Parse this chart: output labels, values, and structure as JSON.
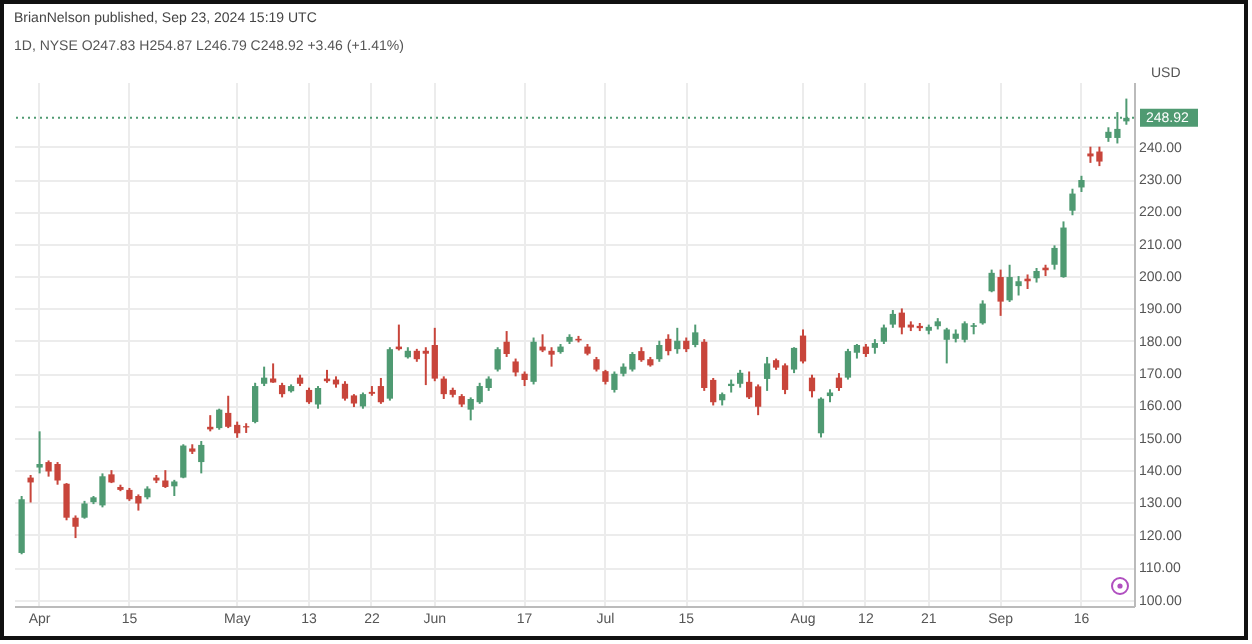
{
  "chart_data": {
    "type": "candlestick",
    "title": "BrianNelson published, Sep 23, 2024 15:19 UTC",
    "subtitle": "1D, NYSE O247.83 H254.87 L246.79 C248.92 +3.46 (+1.41%)",
    "ylabel": "USD",
    "categories": [
      null,
      null,
      "Apr",
      null,
      null,
      null,
      null,
      null,
      null,
      null,
      null,
      null,
      "15",
      null,
      null,
      null,
      null,
      null,
      null,
      null,
      null,
      null,
      null,
      null,
      "May",
      null,
      null,
      null,
      null,
      null,
      null,
      null,
      "13",
      null,
      null,
      null,
      null,
      null,
      null,
      "22",
      null,
      null,
      null,
      null,
      null,
      null,
      "Jun",
      null,
      null,
      null,
      null,
      null,
      null,
      null,
      null,
      null,
      "17",
      null,
      null,
      null,
      null,
      null,
      null,
      null,
      null,
      "Jul",
      null,
      null,
      null,
      null,
      null,
      null,
      null,
      null,
      "15",
      null,
      null,
      null,
      null,
      null,
      null,
      null,
      null,
      null,
      null,
      null,
      null,
      "Aug",
      null,
      null,
      null,
      null,
      null,
      null,
      "12",
      null,
      null,
      null,
      null,
      null,
      null,
      "21",
      null,
      null,
      null,
      null,
      null,
      null,
      null,
      "Sep",
      null,
      null,
      null,
      null,
      null,
      null,
      null,
      null,
      "16",
      null,
      null,
      null,
      null,
      null
    ],
    "ohlc": [
      [
        114.4,
        132,
        114,
        131
      ],
      [
        137.7,
        138.5,
        130,
        136.2
      ],
      [
        140.8,
        152,
        139,
        141.9
      ],
      [
        142.5,
        143,
        138,
        139.6
      ],
      [
        141.9,
        142.5,
        135.5,
        136.8
      ],
      [
        135.8,
        136,
        124.5,
        125.3
      ],
      [
        125.3,
        126,
        119,
        122.5
      ],
      [
        125.3,
        130.5,
        125,
        129.7
      ],
      [
        130.1,
        132,
        129.5,
        131.6
      ],
      [
        129.1,
        139,
        128.5,
        138.1
      ],
      [
        138.7,
        140,
        136,
        136.2
      ],
      [
        134.8,
        135.5,
        133.5,
        133.9
      ],
      [
        133.9,
        134.5,
        130.5,
        131
      ],
      [
        132,
        132.5,
        127.5,
        129.7
      ],
      [
        131.6,
        135,
        131,
        134.3
      ],
      [
        137.7,
        138.5,
        136,
        136.8
      ],
      [
        136.8,
        140,
        134.5,
        134.8
      ],
      [
        135,
        137,
        132,
        136.5
      ],
      [
        137.7,
        148,
        137.5,
        147.6
      ],
      [
        146.7,
        148,
        145,
        145.7
      ],
      [
        142.5,
        149,
        139,
        147.8
      ],
      [
        153.4,
        157,
        152,
        152.6
      ],
      [
        153,
        159,
        152.5,
        158.7
      ],
      [
        157.7,
        163,
        153,
        153.4
      ],
      [
        154,
        155,
        150,
        151.4
      ],
      [
        153.6,
        154.5,
        151.5,
        153.2
      ],
      [
        154.9,
        167,
        154.5,
        166
      ],
      [
        166.7,
        172,
        166,
        168.6
      ],
      [
        168.3,
        173,
        167,
        167.1
      ],
      [
        166.3,
        167,
        162.5,
        163.5
      ],
      [
        164.4,
        166.5,
        164,
        166
      ],
      [
        168.6,
        169.5,
        166,
        166.7
      ],
      [
        164.8,
        165.5,
        160.5,
        161
      ],
      [
        160.3,
        166,
        159,
        165.4
      ],
      [
        168.3,
        171,
        167,
        167.5
      ],
      [
        168,
        169,
        165.5,
        166.5
      ],
      [
        166.7,
        167.5,
        161.5,
        162.1
      ],
      [
        163.1,
        163.5,
        159.5,
        160.6
      ],
      [
        159.7,
        164,
        159,
        163.5
      ],
      [
        164.2,
        166,
        163,
        163.6
      ],
      [
        166,
        168.5,
        160.5,
        161
      ],
      [
        162.1,
        178,
        161.5,
        177.4
      ],
      [
        178.2,
        185,
        177,
        177.4
      ],
      [
        174.9,
        178,
        174.5,
        176.9
      ],
      [
        176.9,
        177.5,
        173.5,
        174.3
      ],
      [
        176.9,
        178,
        166.3,
        176
      ],
      [
        178.7,
        184,
        167.5,
        168.3
      ],
      [
        168.3,
        169,
        162,
        163.5
      ],
      [
        164.8,
        165.5,
        162.5,
        163.3
      ],
      [
        162.9,
        163.5,
        159.5,
        160.3
      ],
      [
        158.7,
        162.5,
        155.4,
        162
      ],
      [
        161,
        167,
        160.5,
        166
      ],
      [
        165.4,
        169,
        164.5,
        168.3
      ],
      [
        171.1,
        178,
        170.5,
        177.4
      ],
      [
        179.7,
        183,
        175,
        175.9
      ],
      [
        173.6,
        174.5,
        169,
        170.2
      ],
      [
        169.8,
        170.5,
        166,
        167.9
      ],
      [
        167.3,
        181,
        166.5,
        179.7
      ],
      [
        178.2,
        182,
        176.5,
        177
      ],
      [
        176.9,
        178,
        172,
        175.7
      ],
      [
        176.5,
        179,
        176,
        178.2
      ],
      [
        179.7,
        182,
        179,
        181.2
      ],
      [
        180.6,
        181.5,
        179.5,
        180.1
      ],
      [
        178.2,
        179,
        175.5,
        176
      ],
      [
        174.3,
        175,
        170.5,
        171.1
      ],
      [
        170.6,
        171,
        166.5,
        167.3
      ],
      [
        164.8,
        170.5,
        164,
        169.8
      ],
      [
        169.8,
        173,
        169,
        172
      ],
      [
        171.1,
        176.5,
        170.5,
        175.9
      ],
      [
        176.8,
        178,
        173.5,
        174
      ],
      [
        174.3,
        175,
        172,
        172.4
      ],
      [
        174.3,
        180,
        173.5,
        178.7
      ],
      [
        180.6,
        182,
        175.5,
        176.8
      ],
      [
        177.4,
        184,
        176,
        180
      ],
      [
        180,
        181,
        176.5,
        177.4
      ],
      [
        178.7,
        185,
        178,
        182.6
      ],
      [
        179.7,
        180.5,
        164.5,
        165.4
      ],
      [
        167.9,
        168.5,
        160,
        161
      ],
      [
        161.6,
        164,
        160,
        163.5
      ],
      [
        166,
        168,
        164,
        166.7
      ],
      [
        166.7,
        171,
        165.5,
        170.1
      ],
      [
        167.3,
        170.5,
        162,
        162.5
      ],
      [
        165.9,
        166.5,
        157,
        159.6
      ],
      [
        168.2,
        175,
        164.5,
        173
      ],
      [
        174,
        174.5,
        171,
        171.7
      ],
      [
        172.4,
        173,
        163.5,
        164.8
      ],
      [
        171.1,
        178,
        170,
        177.8
      ],
      [
        181.6,
        183.5,
        173,
        173.6
      ],
      [
        168.6,
        169.5,
        162.5,
        164.4
      ],
      [
        151.4,
        162.5,
        150.1,
        162.1
      ],
      [
        162.9,
        165,
        161,
        164
      ],
      [
        168.6,
        170,
        164.5,
        165.4
      ],
      [
        168.6,
        177.5,
        168,
        176.8
      ],
      [
        176.3,
        179,
        174.5,
        178.7
      ],
      [
        178.2,
        179,
        175,
        175.9
      ],
      [
        177.8,
        180.5,
        176,
        179.3
      ],
      [
        179.7,
        185,
        179,
        184.1
      ],
      [
        185,
        189.5,
        184,
        188.3
      ],
      [
        188.7,
        190,
        182,
        184.1
      ],
      [
        185,
        186,
        183,
        184.1
      ],
      [
        184.6,
        185.5,
        183,
        183.9
      ],
      [
        183.1,
        185,
        182,
        184.3
      ],
      [
        184.5,
        187,
        183.5,
        186
      ],
      [
        180.3,
        184,
        173,
        183.5
      ],
      [
        180.6,
        183.5,
        179.5,
        182.2
      ],
      [
        180.3,
        186,
        179.5,
        185.4
      ],
      [
        184.3,
        185.5,
        182,
        184.8
      ],
      [
        185.4,
        192.5,
        185,
        191.5
      ],
      [
        195.3,
        202,
        195,
        201
      ],
      [
        199.7,
        202,
        187.7,
        192.1
      ],
      [
        192.5,
        203.5,
        192,
        199.7
      ],
      [
        196.9,
        200,
        194,
        198.4
      ],
      [
        199.2,
        200.5,
        196,
        198.4
      ],
      [
        199.3,
        202.5,
        198,
        201.6
      ],
      [
        202.6,
        203.5,
        200,
        201.8
      ],
      [
        203.5,
        209.5,
        202,
        208.7
      ],
      [
        199.7,
        216.9,
        199.5,
        215
      ],
      [
        220.2,
        227,
        218.8,
        225.5
      ],
      [
        227.4,
        231,
        226,
        229.7
      ],
      [
        237.9,
        240,
        235,
        237
      ],
      [
        238.5,
        240,
        234,
        235.4
      ],
      [
        242.7,
        246,
        241.5,
        244.6
      ],
      [
        242.7,
        250.7,
        241,
        245.5
      ],
      [
        247.83,
        254.87,
        246.79,
        248.92
      ]
    ],
    "colors": [
      "#4f9a72",
      "#c8453b",
      "#4f9a72",
      "#c8453b",
      "#c8453b",
      "#c8453b",
      "#c8453b",
      "#4f9a72",
      "#4f9a72",
      "#4f9a72",
      "#c8453b",
      "#c8453b",
      "#c8453b",
      "#c8453b",
      "#4f9a72",
      "#c8453b",
      "#c8453b",
      "#4f9a72",
      "#4f9a72",
      "#c8453b",
      "#4f9a72",
      "#c8453b",
      "#4f9a72",
      "#c8453b",
      "#c8453b",
      "#c8453b",
      "#4f9a72",
      "#4f9a72",
      "#c8453b",
      "#c8453b",
      "#4f9a72",
      "#c8453b",
      "#c8453b",
      "#4f9a72",
      "#c8453b",
      "#c8453b",
      "#c8453b",
      "#c8453b",
      "#4f9a72",
      "#c8453b",
      "#c8453b",
      "#4f9a72",
      "#c8453b",
      "#4f9a72",
      "#c8453b",
      "#c8453b",
      "#c8453b",
      "#c8453b",
      "#c8453b",
      "#c8453b",
      "#4f9a72",
      "#4f9a72",
      "#4f9a72",
      "#4f9a72",
      "#c8453b",
      "#c8453b",
      "#c8453b",
      "#4f9a72",
      "#c8453b",
      "#c8453b",
      "#4f9a72",
      "#4f9a72",
      "#c8453b",
      "#c8453b",
      "#c8453b",
      "#c8453b",
      "#4f9a72",
      "#4f9a72",
      "#4f9a72",
      "#c8453b",
      "#c8453b",
      "#4f9a72",
      "#c8453b",
      "#4f9a72",
      "#c8453b",
      "#4f9a72",
      "#c8453b",
      "#c8453b",
      "#4f9a72",
      "#4f9a72",
      "#4f9a72",
      "#c8453b",
      "#c8453b",
      "#4f9a72",
      "#c8453b",
      "#c8453b",
      "#4f9a72",
      "#c8453b",
      "#c8453b",
      "#4f9a72",
      "#4f9a72",
      "#c8453b",
      "#4f9a72",
      "#4f9a72",
      "#c8453b",
      "#4f9a72",
      "#4f9a72",
      "#4f9a72",
      "#c8453b",
      "#c8453b",
      "#c8453b",
      "#4f9a72",
      "#4f9a72",
      "#4f9a72",
      "#4f9a72",
      "#4f9a72",
      "#4f9a72",
      "#4f9a72",
      "#4f9a72",
      "#c8453b",
      "#4f9a72",
      "#4f9a72",
      "#c8453b",
      "#4f9a72",
      "#c8453b",
      "#4f9a72",
      "#4f9a72",
      "#4f9a72",
      "#4f9a72",
      "#c8453b",
      "#c8453b",
      "#4f9a72",
      "#4f9a72",
      "#4f9a72"
    ],
    "ylim": [
      98,
      260
    ],
    "yticks": [
      {
        "value": 100,
        "label": "100.00"
      },
      {
        "value": 110,
        "label": "110.00"
      },
      {
        "value": 120,
        "label": "120.00"
      },
      {
        "value": 130,
        "label": "130.00"
      },
      {
        "value": 140,
        "label": "140.00"
      },
      {
        "value": 150,
        "label": "150.00"
      },
      {
        "value": 160,
        "label": "160.00"
      },
      {
        "value": 170,
        "label": "170.00"
      },
      {
        "value": 180,
        "label": "180.00"
      },
      {
        "value": 190,
        "label": "190.00"
      },
      {
        "value": 200,
        "label": "200.00"
      },
      {
        "value": 210,
        "label": "210.00"
      },
      {
        "value": 220,
        "label": "220.00"
      },
      {
        "value": 230,
        "label": "230.00"
      },
      {
        "value": 240,
        "label": "240.00"
      }
    ],
    "ref_lines": [
      {
        "axis": "y",
        "value": 248.92,
        "label": "248.92",
        "color": "#4f9a72",
        "line_style": "dotted"
      }
    ],
    "grid": true
  }
}
